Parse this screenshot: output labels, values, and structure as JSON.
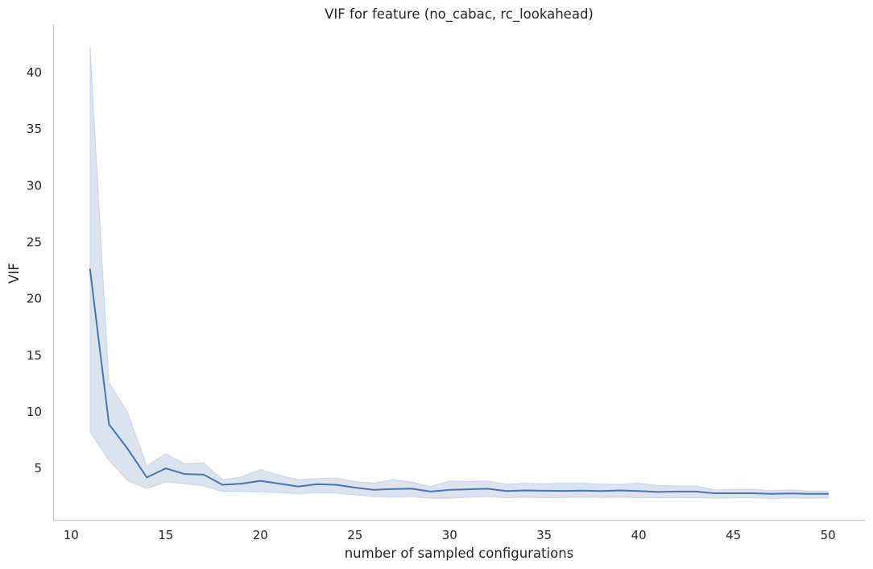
{
  "chart_data": {
    "type": "line",
    "title": "VIF for feature (no_cabac, rc_lookahead)",
    "xlabel": "number of sampled configurations",
    "ylabel": "VIF",
    "xlim": [
      9.05,
      51.95
    ],
    "ylim": [
      0.45,
      44.2
    ],
    "xticks": [
      10,
      15,
      20,
      25,
      30,
      35,
      40,
      45,
      50
    ],
    "yticks": [
      5,
      10,
      15,
      20,
      25,
      30,
      35,
      40
    ],
    "grid": false,
    "colors": {
      "line": "#4c72b0",
      "band": "#4c72b0",
      "axis": "#cccccc",
      "text": "#262626"
    },
    "series": [
      {
        "x": [
          11,
          12,
          13,
          14,
          15,
          16,
          17,
          18,
          19,
          20,
          21,
          22,
          23,
          24,
          25,
          26,
          27,
          28,
          29,
          30,
          31,
          32,
          33,
          34,
          35,
          36,
          37,
          38,
          39,
          40,
          41,
          42,
          43,
          44,
          45,
          46,
          47,
          48,
          49,
          50
        ],
        "values": [
          22.6,
          8.9,
          6.7,
          4.2,
          5.0,
          4.5,
          4.45,
          3.55,
          3.65,
          3.9,
          3.65,
          3.4,
          3.6,
          3.55,
          3.3,
          3.1,
          3.18,
          3.2,
          2.95,
          3.1,
          3.15,
          3.2,
          3.0,
          3.05,
          3.02,
          3.01,
          3.03,
          3.0,
          3.05,
          3.0,
          2.92,
          2.95,
          2.95,
          2.8,
          2.8,
          2.8,
          2.75,
          2.78,
          2.75,
          2.75
        ],
        "ci_lower": [
          8.2,
          5.7,
          3.9,
          3.2,
          3.8,
          3.65,
          3.45,
          2.95,
          2.95,
          2.9,
          2.85,
          2.75,
          2.85,
          2.8,
          2.65,
          2.5,
          2.45,
          2.5,
          2.35,
          2.35,
          2.45,
          2.5,
          2.4,
          2.45,
          2.4,
          2.42,
          2.45,
          2.42,
          2.45,
          2.4,
          2.38,
          2.42,
          2.4,
          2.35,
          2.38,
          2.4,
          2.32,
          2.38,
          2.35,
          2.38
        ],
        "ci_upper": [
          42.3,
          12.6,
          9.9,
          5.2,
          6.3,
          5.4,
          5.5,
          4.0,
          4.25,
          4.9,
          4.4,
          4.0,
          4.1,
          4.15,
          3.85,
          3.7,
          4.0,
          3.8,
          3.4,
          3.9,
          3.85,
          3.9,
          3.6,
          3.7,
          3.65,
          3.7,
          3.7,
          3.6,
          3.6,
          3.7,
          3.5,
          3.45,
          3.45,
          3.1,
          3.15,
          3.15,
          3.05,
          3.1,
          3.0,
          3.0
        ]
      }
    ]
  }
}
